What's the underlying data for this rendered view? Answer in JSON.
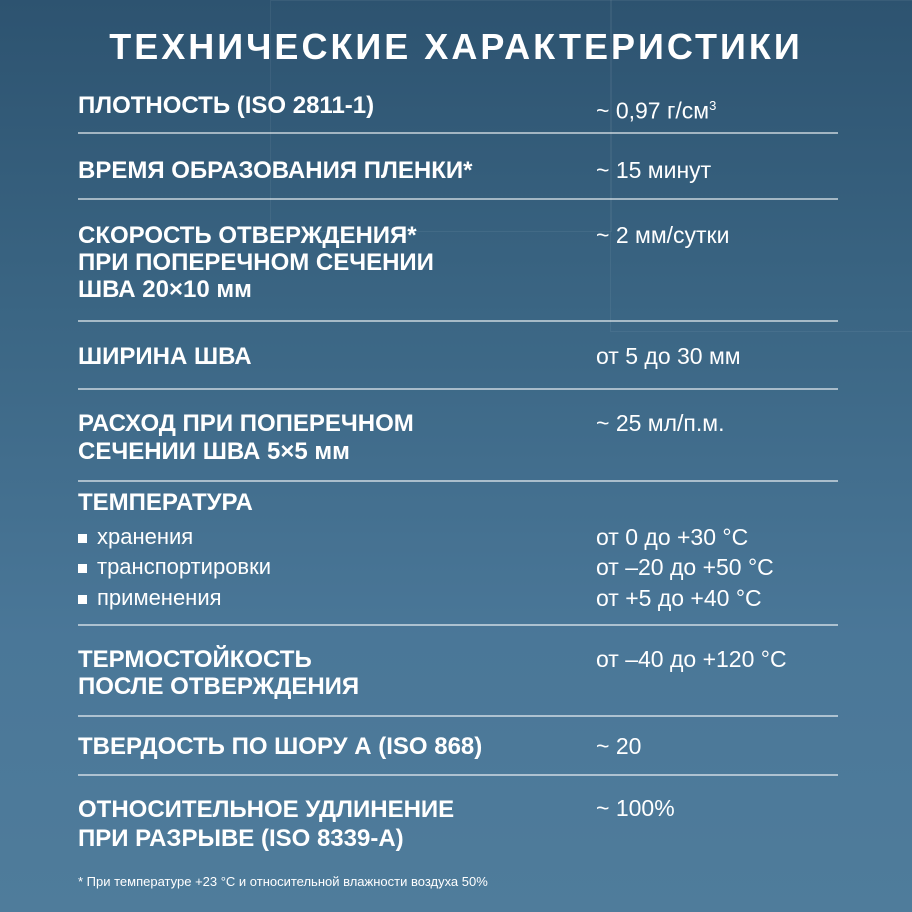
{
  "title": "ТЕХНИЧЕСКИЕ ХАРАКТЕРИСТИКИ",
  "rows": [
    {
      "label": "ПЛОТНОСТЬ (ISO 2811-1)",
      "value": "~ 0,97 г/см",
      "value_sup": "3"
    },
    {
      "label": "ВРЕМЯ ОБРАЗОВАНИЯ ПЛЕНКИ*",
      "value": "~ 15 минут"
    },
    {
      "label_lines": [
        "СКОРОСТЬ ОТВЕРЖДЕНИЯ*",
        "ПРИ ПОПЕРЕЧНОМ СЕЧЕНИИ",
        "ШВА 20×10 мм"
      ],
      "value": "~ 2 мм/сутки"
    },
    {
      "label": "ШИРИНА ШВА",
      "value": "от 5 до 30 мм"
    },
    {
      "label_lines": [
        "РАСХОД ПРИ ПОПЕРЕЧНОМ",
        "СЕЧЕНИИ ШВА 5×5 мм"
      ],
      "value": "~ 25 мл/п.м."
    },
    {
      "label": "ТЕМПЕРАТУРА",
      "items": [
        {
          "label": "хранения",
          "value": "от 0 до +30 °C"
        },
        {
          "label": "транспортировки",
          "value": "от –20 до +50 °C"
        },
        {
          "label": "применения",
          "value": "от +5 до +40 °C"
        }
      ]
    },
    {
      "label_lines": [
        "ТЕРМОСТОЙКОСТЬ",
        "ПОСЛЕ ОТВЕРЖДЕНИЯ"
      ],
      "value": "от –40 до +120 °C"
    },
    {
      "label": "ТВЕРДОСТЬ ПО ШОРУ А (ISO 868)",
      "value": "~ 20"
    },
    {
      "label_lines": [
        "ОТНОСИТЕЛЬНОЕ УДЛИНЕНИЕ",
        "ПРИ РАЗРЫВЕ (ISO 8339-A)"
      ],
      "value": "~ 100%"
    }
  ],
  "footnote": "* При температуре +23 °C и относительной влажности воздуха 50%"
}
